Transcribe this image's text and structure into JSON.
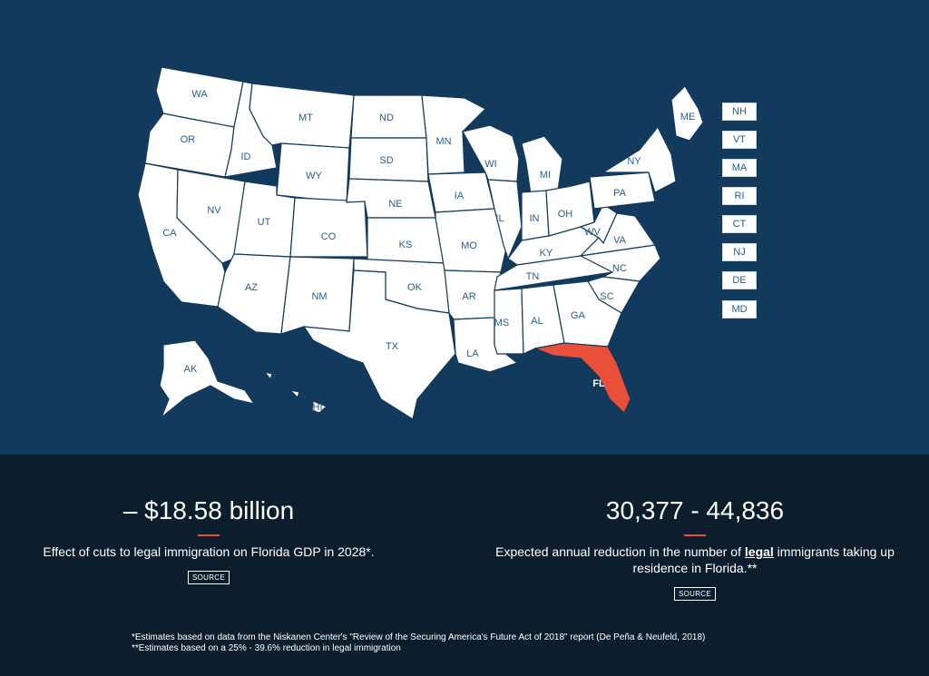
{
  "states": [
    {
      "id": "WA",
      "label": "WA"
    },
    {
      "id": "OR",
      "label": "OR"
    },
    {
      "id": "CA",
      "label": "CA"
    },
    {
      "id": "ID",
      "label": "ID"
    },
    {
      "id": "NV",
      "label": "NV"
    },
    {
      "id": "MT",
      "label": "MT"
    },
    {
      "id": "WY",
      "label": "WY"
    },
    {
      "id": "UT",
      "label": "UT"
    },
    {
      "id": "AZ",
      "label": "AZ"
    },
    {
      "id": "CO",
      "label": "CO"
    },
    {
      "id": "NM",
      "label": "NM"
    },
    {
      "id": "ND",
      "label": "ND"
    },
    {
      "id": "SD",
      "label": "SD"
    },
    {
      "id": "NE",
      "label": "NE"
    },
    {
      "id": "KS",
      "label": "KS"
    },
    {
      "id": "OK",
      "label": "OK"
    },
    {
      "id": "TX",
      "label": "TX"
    },
    {
      "id": "MN",
      "label": "MN"
    },
    {
      "id": "IA",
      "label": "IA"
    },
    {
      "id": "MO",
      "label": "MO"
    },
    {
      "id": "AR",
      "label": "AR"
    },
    {
      "id": "LA",
      "label": "LA"
    },
    {
      "id": "WI",
      "label": "WI"
    },
    {
      "id": "IL",
      "label": "IL"
    },
    {
      "id": "MS",
      "label": "MS"
    },
    {
      "id": "MI",
      "label": "MI"
    },
    {
      "id": "IN",
      "label": "IN"
    },
    {
      "id": "KY",
      "label": "KY"
    },
    {
      "id": "TN",
      "label": "TN"
    },
    {
      "id": "AL",
      "label": "AL"
    },
    {
      "id": "OH",
      "label": "OH"
    },
    {
      "id": "WV",
      "label": "WV"
    },
    {
      "id": "VA",
      "label": "VA"
    },
    {
      "id": "NC",
      "label": "NC"
    },
    {
      "id": "SC",
      "label": "SC"
    },
    {
      "id": "GA",
      "label": "GA"
    },
    {
      "id": "FL",
      "label": "FL"
    },
    {
      "id": "PA",
      "label": "PA"
    },
    {
      "id": "NY",
      "label": "NY"
    },
    {
      "id": "ME",
      "label": "ME"
    },
    {
      "id": "AK",
      "label": "AK"
    },
    {
      "id": "HI",
      "label": "HI"
    }
  ],
  "highlighted_state": "FL",
  "small_states": [
    "NH",
    "VT",
    "MA",
    "RI",
    "CT",
    "NJ",
    "DE",
    "MD"
  ],
  "colors": {
    "map_bg": "#123a5c",
    "state_fill": "#ffffff",
    "highlight": "#e8503a",
    "label": "#2a5d8c",
    "stats_bg": "#0c1e2e"
  },
  "stats": {
    "gdp": {
      "value": "– $18.58 billion",
      "desc": "Effect of cuts to legal immigration on Florida GDP in 2028*.",
      "source_label": "SOURCE"
    },
    "immigrants": {
      "value": "30,377 - 44,836",
      "desc_before": "Expected annual reduction in the number of ",
      "desc_emph": "legal",
      "desc_after": " immigrants taking up residence in Florida.**",
      "source_label": "SOURCE"
    }
  },
  "footnotes": {
    "note1": "*Estimates based on data from the Niskanen Center's \"Review of the Securing America's Future Act of 2018\" report (De Peña & Neufeld, 2018)",
    "note2": "**Estimates based on a 25% - 39.6% reduction in legal immigration"
  }
}
